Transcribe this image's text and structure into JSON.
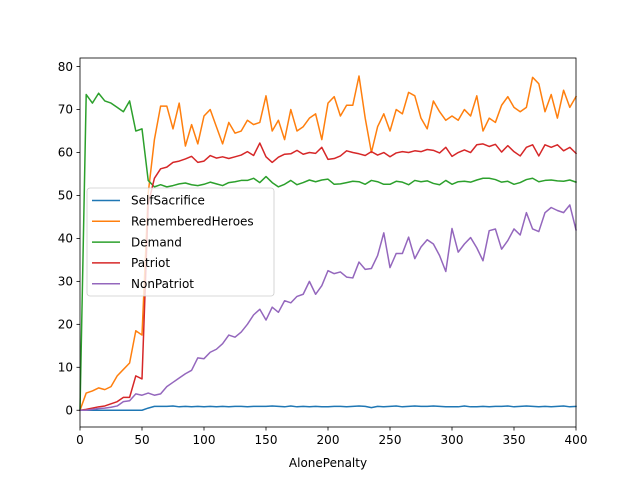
{
  "chart_data": {
    "type": "line",
    "title": "",
    "xlabel": "AlonePenalty",
    "ylabel": "",
    "xlim": [
      0,
      400
    ],
    "ylim": [
      -3.9,
      82
    ],
    "xticks": [
      0,
      50,
      100,
      150,
      200,
      250,
      300,
      350,
      400
    ],
    "yticks": [
      0,
      10,
      20,
      30,
      40,
      50,
      60,
      70,
      80
    ],
    "grid": false,
    "legend_position": "center-left",
    "x": [
      0,
      5,
      10,
      15,
      20,
      25,
      30,
      35,
      40,
      45,
      50,
      55,
      60,
      65,
      70,
      75,
      80,
      85,
      90,
      95,
      100,
      105,
      110,
      115,
      120,
      125,
      130,
      135,
      140,
      145,
      150,
      155,
      160,
      165,
      170,
      175,
      180,
      185,
      190,
      195,
      200,
      205,
      210,
      215,
      220,
      225,
      230,
      235,
      240,
      245,
      250,
      255,
      260,
      265,
      270,
      275,
      280,
      285,
      290,
      295,
      300,
      305,
      310,
      315,
      320,
      325,
      330,
      335,
      340,
      345,
      350,
      355,
      360,
      365,
      370,
      375,
      380,
      385,
      390,
      395,
      400
    ],
    "series": [
      {
        "name": "SelfSacrifice",
        "color": "#1f77b4",
        "values": [
          0,
          0,
          0,
          0,
          0,
          0,
          0,
          0,
          0,
          0,
          0,
          0.5,
          0.9,
          0.9,
          0.9,
          1.0,
          0.8,
          0.9,
          0.8,
          0.9,
          0.8,
          0.9,
          0.8,
          0.9,
          0.8,
          0.9,
          0.9,
          0.8,
          0.9,
          0.9,
          0.9,
          1.0,
          0.9,
          0.8,
          1.0,
          0.8,
          0.9,
          0.8,
          0.9,
          0.8,
          0.8,
          0.9,
          0.9,
          0.8,
          0.9,
          1.0,
          0.9,
          0.6,
          0.9,
          0.8,
          0.9,
          1.0,
          0.8,
          0.9,
          1.0,
          0.9,
          0.9,
          1.0,
          0.9,
          0.8,
          0.8,
          0.8,
          1.0,
          0.8,
          0.8,
          0.9,
          0.8,
          0.9,
          0.9,
          1.0,
          0.8,
          0.9,
          1.0,
          0.9,
          0.8,
          0.9,
          0.8,
          0.9,
          1.0,
          0.8,
          0.9
        ]
      },
      {
        "name": "RememberedHeroes",
        "color": "#ff7f0e",
        "values": [
          0,
          4.0,
          4.5,
          5.2,
          4.8,
          5.5,
          8.0,
          9.5,
          11.0,
          18.5,
          17.5,
          50.5,
          63.0,
          70.8,
          70.8,
          65.5,
          71.5,
          61.5,
          66.5,
          62.0,
          68.5,
          70.0,
          66.0,
          62.0,
          67.0,
          64.5,
          65.0,
          67.5,
          66.5,
          67.0,
          73.2,
          65.0,
          67.5,
          63.0,
          70.0,
          65.0,
          66.0,
          68.0,
          69.0,
          63.0,
          71.5,
          73.0,
          68.5,
          71.0,
          71.0,
          77.8,
          68.0,
          60.0,
          66.0,
          69.0,
          65.0,
          70.0,
          69.0,
          74.0,
          73.2,
          68.0,
          65.5,
          72.0,
          69.5,
          67.5,
          68.5,
          67.5,
          70.0,
          68.5,
          73.2,
          65.0,
          68.0,
          67.0,
          71.0,
          73.0,
          70.5,
          69.5,
          70.5,
          77.5,
          76.0,
          69.5,
          73.5,
          68.0,
          74.5,
          70.5,
          73.0
        ]
      },
      {
        "name": "Demand",
        "color": "#2ca02c",
        "values": [
          0,
          73.5,
          71.5,
          73.8,
          72.0,
          71.5,
          70.5,
          69.5,
          72.0,
          65.0,
          65.5,
          53.5,
          52.0,
          52.5,
          52.0,
          52.3,
          52.7,
          52.9,
          52.5,
          52.3,
          52.6,
          53.1,
          52.7,
          52.3,
          53.0,
          53.2,
          53.5,
          53.5,
          54.0,
          53.0,
          54.4,
          53.0,
          52.0,
          52.6,
          53.5,
          52.5,
          53.0,
          53.6,
          53.2,
          53.6,
          53.8,
          52.6,
          52.7,
          53.0,
          53.3,
          53.2,
          52.6,
          53.5,
          53.2,
          52.6,
          52.6,
          53.3,
          53.1,
          52.5,
          53.5,
          53.2,
          53.4,
          52.8,
          52.5,
          53.5,
          52.6,
          53.2,
          53.3,
          53.1,
          53.6,
          54.0,
          54.0,
          53.7,
          53.1,
          53.3,
          52.6,
          53.0,
          53.7,
          54.0,
          53.2,
          53.5,
          53.6,
          53.4,
          53.3,
          53.6,
          53.1
        ]
      },
      {
        "name": "Patriot",
        "color": "#d62728",
        "values": [
          0,
          0.2,
          0.5,
          0.8,
          1.0,
          1.5,
          2.0,
          3.0,
          3.0,
          8.0,
          7.3,
          48.0,
          54.0,
          56.2,
          56.6,
          57.7,
          58.0,
          58.5,
          59.1,
          57.7,
          58.0,
          59.3,
          58.7,
          59.0,
          58.6,
          59.0,
          59.4,
          60.2,
          59.3,
          62.2,
          59.0,
          57.7,
          58.9,
          59.6,
          59.7,
          60.5,
          59.6,
          60.0,
          59.8,
          61.2,
          58.4,
          58.6,
          59.2,
          60.4,
          60.0,
          59.7,
          59.3,
          60.2,
          59.4,
          60.0,
          59.0,
          59.9,
          60.2,
          60.0,
          60.4,
          60.2,
          60.7,
          60.5,
          59.9,
          61.2,
          59.1,
          60.0,
          60.6,
          60.0,
          61.8,
          62.0,
          61.4,
          61.9,
          60.1,
          61.6,
          60.2,
          59.2,
          61.2,
          61.8,
          59.2,
          61.8,
          61.2,
          61.8,
          60.4,
          61.2,
          59.8
        ]
      },
      {
        "name": "NonPatriot",
        "color": "#9467bd",
        "values": [
          0,
          0,
          0.2,
          0.4,
          0.5,
          0.7,
          1.0,
          2.0,
          2.2,
          3.8,
          3.5,
          4.0,
          3.5,
          3.8,
          5.5,
          6.5,
          7.5,
          8.5,
          9.3,
          12.2,
          12.0,
          13.5,
          14.2,
          15.5,
          17.5,
          17.0,
          18.2,
          20.0,
          22.2,
          23.5,
          21.0,
          24.0,
          22.8,
          25.5,
          25.0,
          26.5,
          27.0,
          30.0,
          27.0,
          29.0,
          32.5,
          31.8,
          32.2,
          31.0,
          30.8,
          34.5,
          32.8,
          33.0,
          36.0,
          41.3,
          33.2,
          36.5,
          36.5,
          40.3,
          35.3,
          38.0,
          39.7,
          38.7,
          36.0,
          32.3,
          42.3,
          36.8,
          38.7,
          40.2,
          37.8,
          34.8,
          41.8,
          42.2,
          37.5,
          39.5,
          42.2,
          40.8,
          46.0,
          42.2,
          41.6,
          46.0,
          47.2,
          46.5,
          46.0,
          47.8,
          42.0
        ]
      }
    ]
  }
}
